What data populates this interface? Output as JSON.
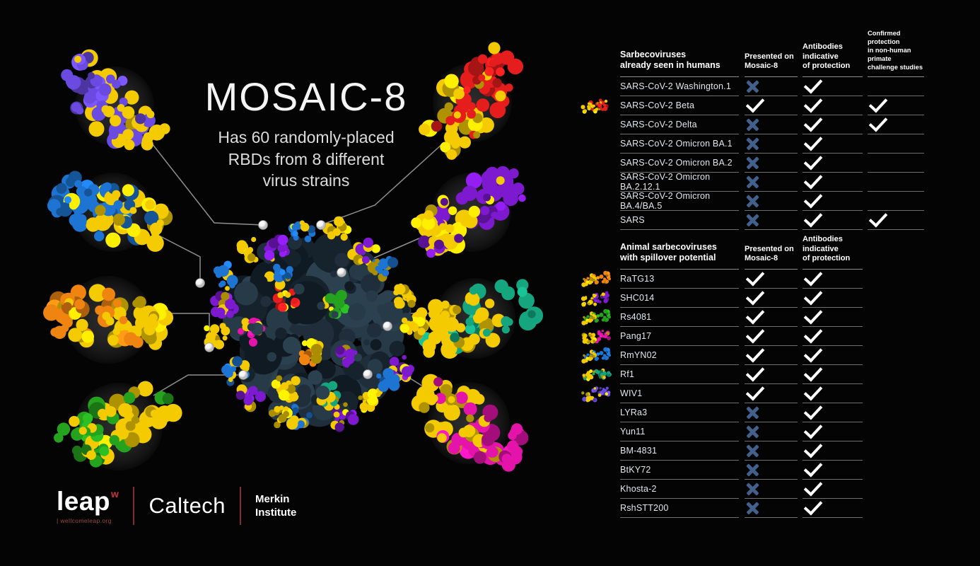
{
  "title": {
    "main": "MOSAIC-8",
    "subtitle_lines": [
      "Has 60 randomly-placed",
      "RBDs from 8 different",
      "virus strains"
    ]
  },
  "table_human": {
    "section_title": [
      "Sarbecoviruses",
      "already seen in humans"
    ],
    "columns": [
      [
        "Presented on",
        "Mosaic-8"
      ],
      [
        "Antibodies indicative",
        "of protection"
      ],
      [
        "Confirmed protection",
        "in non-human primate",
        "challenge studies"
      ]
    ],
    "rows": [
      {
        "name": "SARS-CoV-2 Washington.1",
        "thumb": null,
        "marks": [
          "cross",
          "check",
          "none"
        ]
      },
      {
        "name": "SARS-CoV-2 Beta",
        "thumb": "beta",
        "marks": [
          "check",
          "check",
          "check"
        ]
      },
      {
        "name": "SARS-CoV-2 Delta",
        "thumb": null,
        "marks": [
          "cross",
          "check",
          "check"
        ]
      },
      {
        "name": "SARS-CoV-2 Omicron BA.1",
        "thumb": null,
        "marks": [
          "cross",
          "check",
          "none"
        ]
      },
      {
        "name": "SARS-CoV-2 Omicron BA.2",
        "thumb": null,
        "marks": [
          "cross",
          "check",
          "none"
        ]
      },
      {
        "name": "SARS-CoV-2 Omicron BA.2.12.1",
        "thumb": null,
        "marks": [
          "cross",
          "check",
          "none"
        ]
      },
      {
        "name": "SARS-CoV-2 Omicron BA.4/BA.5",
        "thumb": null,
        "marks": [
          "cross",
          "check",
          "none"
        ]
      },
      {
        "name": "SARS",
        "thumb": null,
        "marks": [
          "cross",
          "check",
          "check"
        ]
      }
    ]
  },
  "table_animal": {
    "section_title": [
      "Animal sarbecoviruses",
      "with spillover potential"
    ],
    "columns": [
      [
        "Presented on",
        "Mosaic-8"
      ],
      [
        "Antibodies indicative",
        "of protection"
      ]
    ],
    "rows": [
      {
        "name": "RaTG13",
        "thumb": "ratg13",
        "marks": [
          "check",
          "check"
        ]
      },
      {
        "name": "SHC014",
        "thumb": "shc014",
        "marks": [
          "check",
          "check"
        ]
      },
      {
        "name": "Rs4081",
        "thumb": "rs4081",
        "marks": [
          "check",
          "check"
        ]
      },
      {
        "name": "Pang17",
        "thumb": "pang17",
        "marks": [
          "check",
          "check"
        ]
      },
      {
        "name": "RmYN02",
        "thumb": "rmyn02",
        "marks": [
          "check",
          "check"
        ]
      },
      {
        "name": "Rf1",
        "thumb": "rf1",
        "marks": [
          "check",
          "check"
        ]
      },
      {
        "name": "WIV1",
        "thumb": "wiv1",
        "marks": [
          "check",
          "check"
        ]
      },
      {
        "name": "LYRa3",
        "thumb": null,
        "marks": [
          "cross",
          "check"
        ]
      },
      {
        "name": "Yun11",
        "thumb": null,
        "marks": [
          "cross",
          "check"
        ]
      },
      {
        "name": "BM-4831",
        "thumb": null,
        "marks": [
          "cross",
          "check"
        ]
      },
      {
        "name": "BtKY72",
        "thumb": null,
        "marks": [
          "cross",
          "check"
        ]
      },
      {
        "name": "Khosta-2",
        "thumb": null,
        "marks": [
          "cross",
          "check"
        ]
      },
      {
        "name": "RshSTT200",
        "thumb": null,
        "marks": [
          "cross",
          "check"
        ]
      }
    ]
  },
  "footer": {
    "leap_text": "leap",
    "leap_sup": "w",
    "leap_tagline": "| wellcomeleap.org",
    "caltech_text": "Caltech",
    "merkin_lines": [
      "Merkin",
      "Institute"
    ]
  },
  "colors": {
    "background": "#040404",
    "check_mark": "#ffffff",
    "cross_mark": "#42608c",
    "row_line": "#6f6f6f",
    "logo_accent_red": "#c8363f",
    "yellow": "#f3cb00",
    "strain_pairs": {
      "beta": [
        "#e51d1d",
        "#f3cb00"
      ],
      "ratg13": [
        "#ef8410",
        "#f3cb00"
      ],
      "shc014": [
        "#7d19cf",
        "#f3cb00"
      ],
      "rs4081": [
        "#25a31f",
        "#f3cb00"
      ],
      "pang17": [
        "#e414ab",
        "#f3cb00"
      ],
      "rmyn02": [
        "#1d74d2",
        "#f3cb00"
      ],
      "rf1": [
        "#15a57f",
        "#f3cb00"
      ],
      "wiv1": [
        "#6a4ae0",
        "#f3cb00"
      ]
    }
  }
}
